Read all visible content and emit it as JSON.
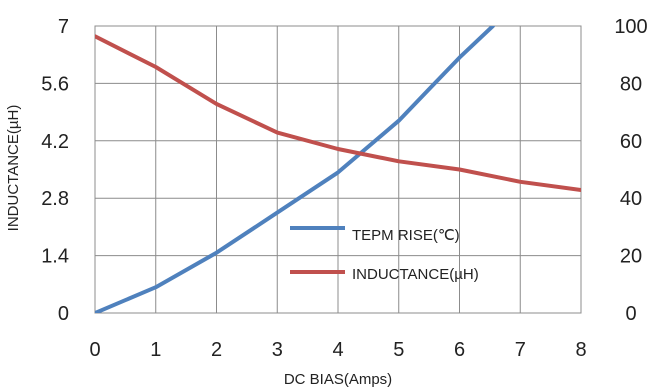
{
  "chart_data": {
    "type": "line",
    "title": "",
    "xlabel": "DC  BIAS(Amps)",
    "ylabel": "INDUCTANCE(µH)",
    "y2label": "",
    "xlim": [
      0,
      8
    ],
    "ylim": [
      0,
      7
    ],
    "y2lim": [
      0,
      100
    ],
    "x_ticks": [
      "0",
      "1",
      "2",
      "3",
      "4",
      "5",
      "6",
      "7",
      "8"
    ],
    "y_ticks": [
      "0",
      "1.4",
      "2.8",
      "4.2",
      "5.6",
      "7"
    ],
    "y2_ticks": [
      "0",
      "20",
      "40",
      "60",
      "80",
      "100"
    ],
    "grid": true,
    "legend_position": "center-right",
    "series": [
      {
        "name": "TEPM RISE(℃)",
        "axis": "right",
        "color": "#4f81bd",
        "x": [
          0,
          1,
          2,
          3,
          4,
          5,
          5.5,
          6,
          6.55
        ],
        "values": [
          0,
          9,
          21,
          35,
          49,
          67,
          78,
          89,
          100
        ]
      },
      {
        "name": "INDUCTANCE(µH)",
        "axis": "left",
        "color": "#c0504d",
        "x": [
          0,
          1,
          2,
          3,
          4,
          5,
          6,
          7,
          8
        ],
        "values": [
          6.75,
          6.0,
          5.1,
          4.4,
          4.0,
          3.7,
          3.5,
          3.2,
          3.0
        ]
      }
    ]
  }
}
